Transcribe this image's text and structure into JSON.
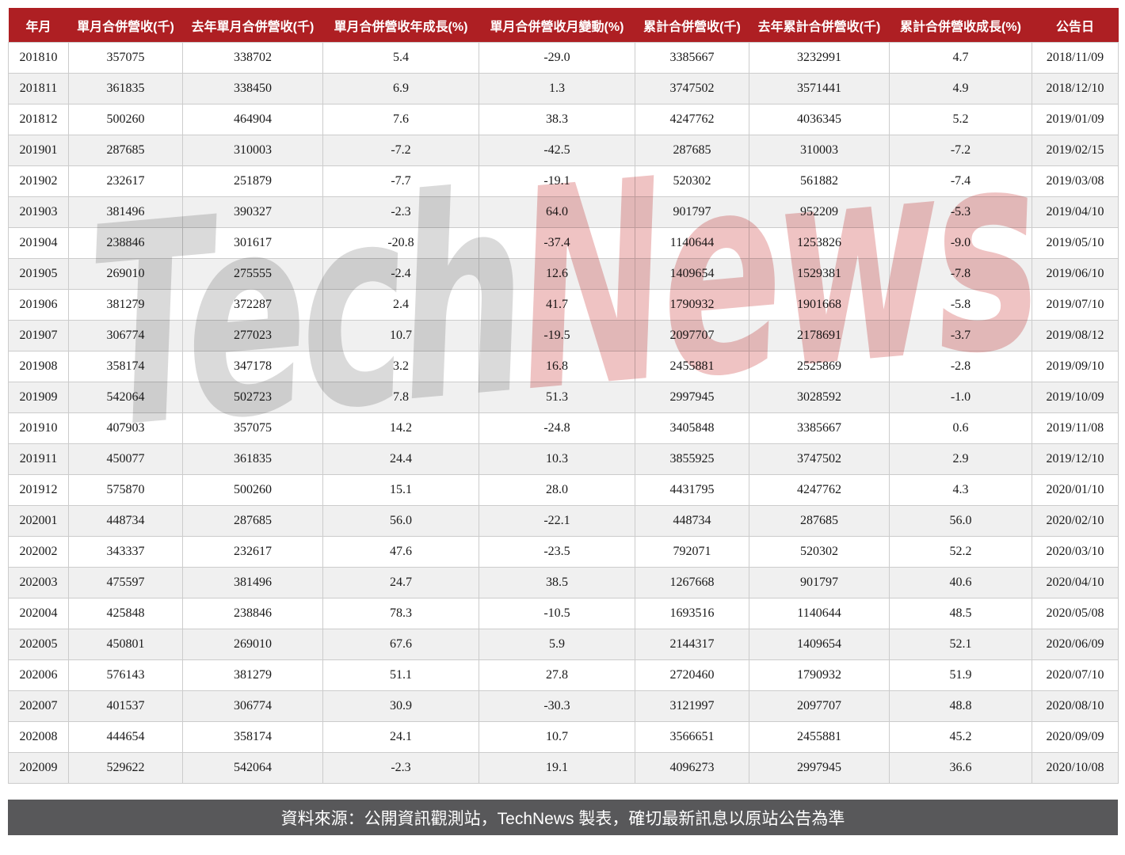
{
  "chart_data": {
    "type": "table",
    "columns": [
      "年月",
      "單月合併營收(千)",
      "去年單月合併營收(千)",
      "單月合併營收年成長(%)",
      "單月合併營收月變動(%)",
      "累計合併營收(千)",
      "去年累計合併營收(千)",
      "累計合併營收成長(%)",
      "公告日"
    ],
    "rows": [
      [
        "201810",
        "357075",
        "338702",
        "5.4",
        "-29.0",
        "3385667",
        "3232991",
        "4.7",
        "2018/11/09"
      ],
      [
        "201811",
        "361835",
        "338450",
        "6.9",
        "1.3",
        "3747502",
        "3571441",
        "4.9",
        "2018/12/10"
      ],
      [
        "201812",
        "500260",
        "464904",
        "7.6",
        "38.3",
        "4247762",
        "4036345",
        "5.2",
        "2019/01/09"
      ],
      [
        "201901",
        "287685",
        "310003",
        "-7.2",
        "-42.5",
        "287685",
        "310003",
        "-7.2",
        "2019/02/15"
      ],
      [
        "201902",
        "232617",
        "251879",
        "-7.7",
        "-19.1",
        "520302",
        "561882",
        "-7.4",
        "2019/03/08"
      ],
      [
        "201903",
        "381496",
        "390327",
        "-2.3",
        "64.0",
        "901797",
        "952209",
        "-5.3",
        "2019/04/10"
      ],
      [
        "201904",
        "238846",
        "301617",
        "-20.8",
        "-37.4",
        "1140644",
        "1253826",
        "-9.0",
        "2019/05/10"
      ],
      [
        "201905",
        "269010",
        "275555",
        "-2.4",
        "12.6",
        "1409654",
        "1529381",
        "-7.8",
        "2019/06/10"
      ],
      [
        "201906",
        "381279",
        "372287",
        "2.4",
        "41.7",
        "1790932",
        "1901668",
        "-5.8",
        "2019/07/10"
      ],
      [
        "201907",
        "306774",
        "277023",
        "10.7",
        "-19.5",
        "2097707",
        "2178691",
        "-3.7",
        "2019/08/12"
      ],
      [
        "201908",
        "358174",
        "347178",
        "3.2",
        "16.8",
        "2455881",
        "2525869",
        "-2.8",
        "2019/09/10"
      ],
      [
        "201909",
        "542064",
        "502723",
        "7.8",
        "51.3",
        "2997945",
        "3028592",
        "-1.0",
        "2019/10/09"
      ],
      [
        "201910",
        "407903",
        "357075",
        "14.2",
        "-24.8",
        "3405848",
        "3385667",
        "0.6",
        "2019/11/08"
      ],
      [
        "201911",
        "450077",
        "361835",
        "24.4",
        "10.3",
        "3855925",
        "3747502",
        "2.9",
        "2019/12/10"
      ],
      [
        "201912",
        "575870",
        "500260",
        "15.1",
        "28.0",
        "4431795",
        "4247762",
        "4.3",
        "2020/01/10"
      ],
      [
        "202001",
        "448734",
        "287685",
        "56.0",
        "-22.1",
        "448734",
        "287685",
        "56.0",
        "2020/02/10"
      ],
      [
        "202002",
        "343337",
        "232617",
        "47.6",
        "-23.5",
        "792071",
        "520302",
        "52.2",
        "2020/03/10"
      ],
      [
        "202003",
        "475597",
        "381496",
        "24.7",
        "38.5",
        "1267668",
        "901797",
        "40.6",
        "2020/04/10"
      ],
      [
        "202004",
        "425848",
        "238846",
        "78.3",
        "-10.5",
        "1693516",
        "1140644",
        "48.5",
        "2020/05/08"
      ],
      [
        "202005",
        "450801",
        "269010",
        "67.6",
        "5.9",
        "2144317",
        "1409654",
        "52.1",
        "2020/06/09"
      ],
      [
        "202006",
        "576143",
        "381279",
        "51.1",
        "27.8",
        "2720460",
        "1790932",
        "51.9",
        "2020/07/10"
      ],
      [
        "202007",
        "401537",
        "306774",
        "30.9",
        "-30.3",
        "3121997",
        "2097707",
        "48.8",
        "2020/08/10"
      ],
      [
        "202008",
        "444654",
        "358174",
        "24.1",
        "10.7",
        "3566651",
        "2455881",
        "45.2",
        "2020/09/09"
      ],
      [
        "202009",
        "529622",
        "542064",
        "-2.3",
        "19.1",
        "4096273",
        "2997945",
        "36.6",
        "2020/10/08"
      ]
    ],
    "title": "",
    "legend": [],
    "layout_hints": {
      "striped": true,
      "header_position": "top"
    }
  },
  "watermark": {
    "tech": "Tech",
    "news": "News"
  },
  "footer": {
    "text": "資料來源：公開資訊觀測站，TechNews 製表，確切最新訊息以原站公告為準"
  },
  "colors": {
    "header_bg": "#AE1F23",
    "header_text": "#FFFFFF",
    "row_stripe": "#F0F0F0",
    "row_plain": "#FFFFFF",
    "cell_border": "#CCCCCC",
    "footer_bg": "#58585A",
    "footer_text": "#FFFFFF",
    "watermark_gray": "#8C8C8C",
    "watermark_red": "#C93939"
  }
}
